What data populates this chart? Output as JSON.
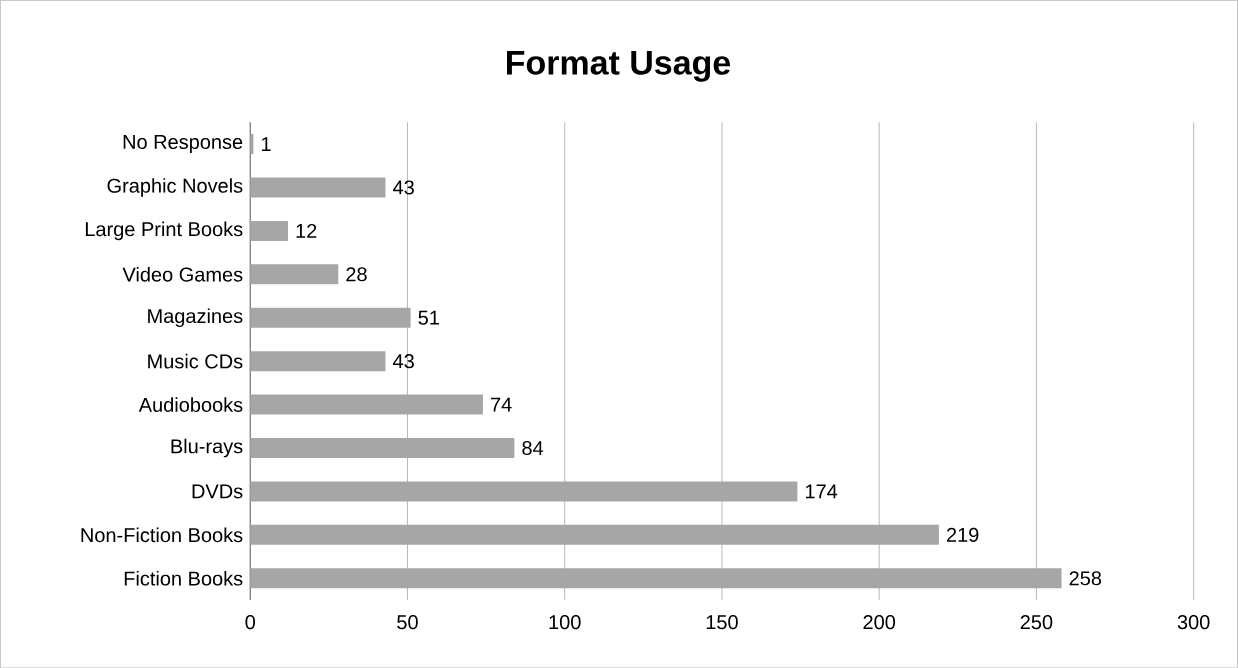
{
  "chart_data": {
    "type": "bar",
    "orientation": "horizontal",
    "title": "Format Usage",
    "categories": [
      "No Response",
      "Graphic Novels",
      "Large Print Books",
      "Video Games",
      "Magazines",
      "Music CDs",
      "Audiobooks",
      "Blu-rays",
      "DVDs",
      "Non-Fiction Books",
      "Fiction Books"
    ],
    "values": [
      1,
      43,
      12,
      28,
      51,
      43,
      74,
      84,
      174,
      219,
      258
    ],
    "color": "#a6a6a6",
    "xlim": [
      0,
      300
    ],
    "xticks": [
      0,
      50,
      100,
      150,
      200,
      250,
      300
    ],
    "grid": "x",
    "data_labels": true
  }
}
